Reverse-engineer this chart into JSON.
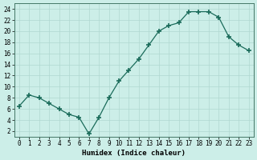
{
  "x": [
    0,
    1,
    2,
    3,
    4,
    5,
    6,
    7,
    8,
    9,
    10,
    11,
    12,
    13,
    14,
    15,
    16,
    17,
    18,
    19,
    20,
    21,
    22,
    23
  ],
  "y": [
    6.5,
    8.5,
    8.0,
    7.0,
    6.0,
    5.0,
    4.5,
    1.5,
    4.5,
    8.0,
    11.0,
    13.0,
    15.0,
    17.5,
    20.0,
    21.0,
    21.5,
    23.5,
    23.5,
    23.5,
    22.5,
    19.0,
    17.5,
    16.5
  ],
  "line_color": "#1a6b5a",
  "marker": "+",
  "marker_size": 4,
  "bg_color": "#cceee8",
  "grid_color": "#b0d8d0",
  "xlabel": "Humidex (Indice chaleur)",
  "xlim": [
    -0.5,
    23.5
  ],
  "ylim": [
    1,
    25
  ],
  "yticks": [
    2,
    4,
    6,
    8,
    10,
    12,
    14,
    16,
    18,
    20,
    22,
    24
  ],
  "xticks": [
    0,
    1,
    2,
    3,
    4,
    5,
    6,
    7,
    8,
    9,
    10,
    11,
    12,
    13,
    14,
    15,
    16,
    17,
    18,
    19,
    20,
    21,
    22,
    23
  ],
  "label_fontsize": 6.5,
  "tick_fontsize": 5.5,
  "marker_linewidth": 1.2,
  "line_width": 0.9
}
